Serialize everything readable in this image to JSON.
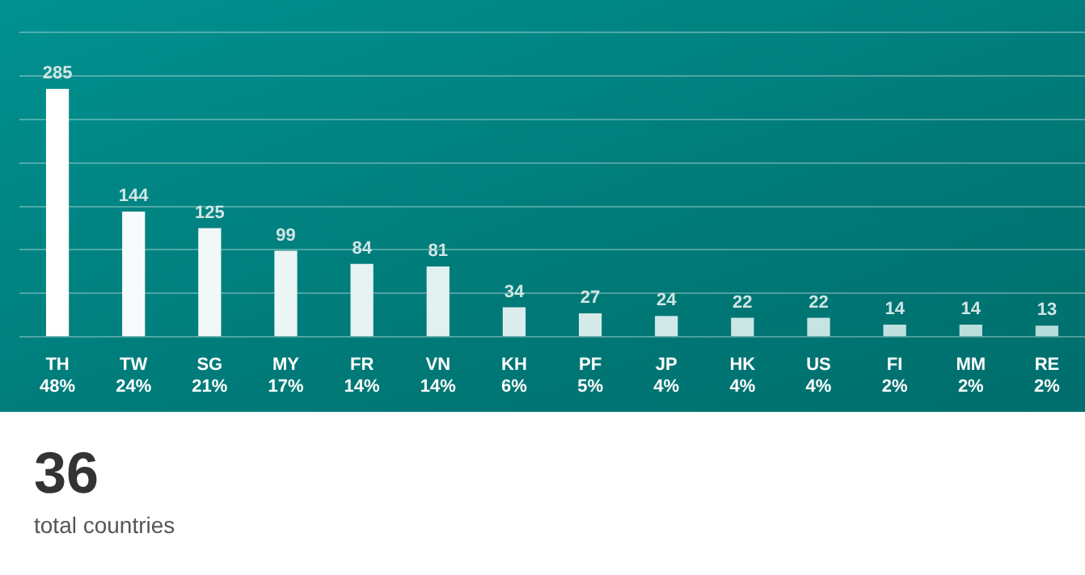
{
  "chart_data": {
    "type": "bar",
    "categories": [
      "TH\n48%",
      "TW\n24%",
      "SG\n21%",
      "MY\n17%",
      "FR\n14%",
      "VN\n14%",
      "KH\n6%",
      "PF\n5%",
      "JP\n4%",
      "HK\n4%",
      "US\n4%",
      "FI\n2%",
      "MM\n2%",
      "RE\n2%"
    ],
    "values": [
      285,
      144,
      125,
      99,
      84,
      81,
      34,
      27,
      24,
      22,
      22,
      14,
      14,
      13
    ],
    "colors": [
      "#ffffff",
      "#f7fbfb",
      "#f1f8f8",
      "#ecf6f5",
      "#e6f3f2",
      "#e1f1f0",
      "#dbeeed",
      "#d5ebea",
      "#d0e9e8",
      "#cbe6e5",
      "#c5e4e2",
      "#c0e1df",
      "#bbdfdd",
      "#b6dcda"
    ],
    "ylim": [
      0,
      350
    ],
    "yticks": [
      {
        "value": 0,
        "label": null
      },
      {
        "value": 50,
        "label": null
      },
      {
        "value": 100,
        "label": null
      },
      {
        "value": 150,
        "label": null
      },
      {
        "value": 200,
        "label": null
      },
      {
        "value": 250,
        "label": null
      },
      {
        "value": 300,
        "label": null
      },
      {
        "value": 350,
        "label": null
      }
    ],
    "grid": "y",
    "legend": false,
    "tick_labels": "x",
    "data_labels": true,
    "annotations": [
      "36",
      "total countries"
    ]
  }
}
